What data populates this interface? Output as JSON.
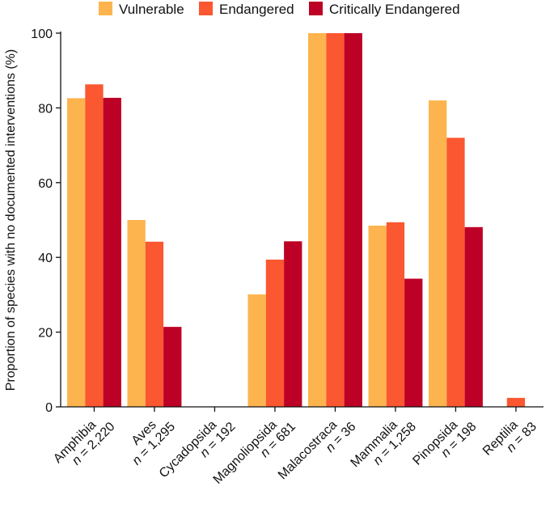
{
  "chart_data": {
    "type": "bar",
    "title": "",
    "xlabel": "",
    "ylabel": "Proportion of species with no documented interventions (%)",
    "ylim": [
      0,
      100
    ],
    "yticks": [
      0,
      20,
      40,
      60,
      80,
      100
    ],
    "grid": false,
    "legend_position": "top",
    "categories": [
      {
        "name": "Amphibia",
        "n": "2,220"
      },
      {
        "name": "Aves",
        "n": "1,295"
      },
      {
        "name": "Cycadopsida",
        "n": "192"
      },
      {
        "name": "Magnoliopsida",
        "n": "681"
      },
      {
        "name": "Malacostraca",
        "n": "36"
      },
      {
        "name": "Mammalia",
        "n": "1,258"
      },
      {
        "name": "Pinopsida",
        "n": "198"
      },
      {
        "name": "Reptilia",
        "n": "83"
      }
    ],
    "n_prefix": "n",
    "n_sep": " = ",
    "series": [
      {
        "name": "Vulnerable",
        "color": "#FDB44E",
        "values": [
          82.6,
          50.0,
          0,
          30.1,
          100,
          48.5,
          82.0,
          0
        ]
      },
      {
        "name": "Endangered",
        "color": "#FB5730",
        "values": [
          86.3,
          44.2,
          0,
          39.4,
          100,
          49.4,
          72.0,
          2.4
        ]
      },
      {
        "name": "Critically Endangered",
        "color": "#BD0026",
        "values": [
          82.7,
          21.4,
          0,
          44.3,
          100,
          34.3,
          48.1,
          0
        ]
      }
    ]
  }
}
